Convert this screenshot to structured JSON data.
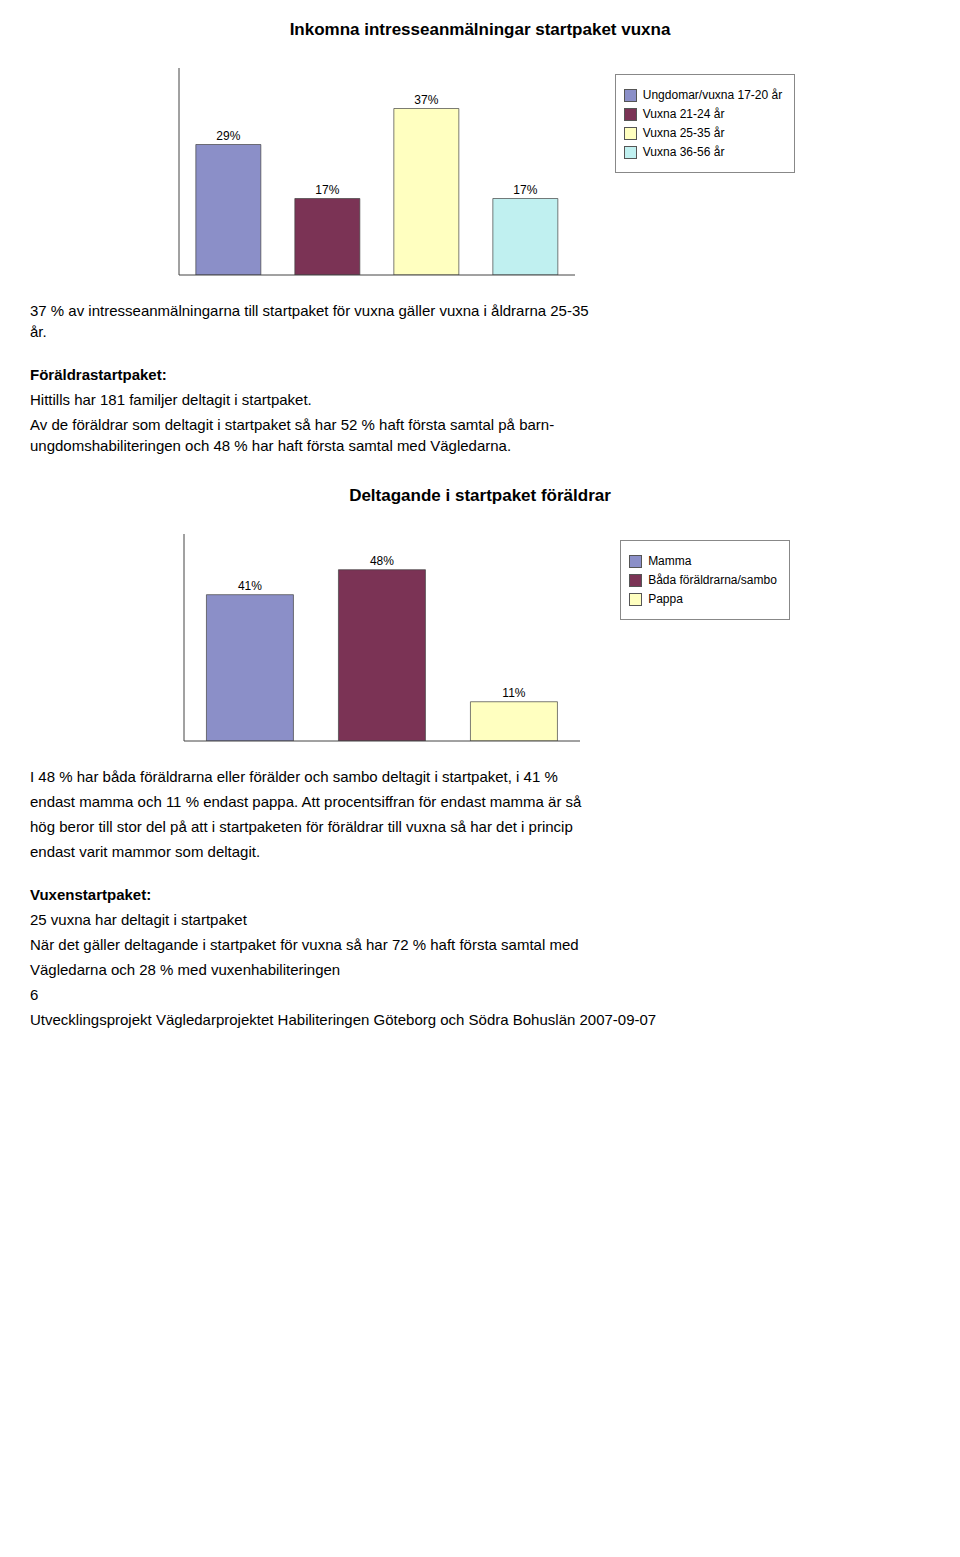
{
  "chart_data": [
    {
      "type": "bar",
      "title": "Inkomna intresseanmälningar startpaket vuxna",
      "categories": [
        "Ungdomar/vuxna 17-20 år",
        "Vuxna 21-24 år",
        "Vuxna 25-35 år",
        "Vuxna 36-56 år"
      ],
      "values": [
        29,
        17,
        37,
        17
      ],
      "value_labels": [
        "29%",
        "17%",
        "37%",
        "17%"
      ],
      "colors": [
        "#8b8fc8",
        "#7b3355",
        "#ffffc0",
        "#c0f0f0"
      ],
      "ylim": [
        0,
        46
      ],
      "data_labels": true,
      "tick_labels": false,
      "legend": "right",
      "annotations": [
        "37 % av intresseanmälningarna till startpaket för vuxna gäller vuxna i åldrarna 25-35\når.",
        "Föräldrastartpaket:",
        "Hittills har 181 familjer deltagit i startpaket.",
        "Av de föräldrar som deltagit i startpaket så har 52 % haft första samtal på barn-\nungdomshabiliteringen och 48 % har haft första samtal med Vägledarna."
      ]
    },
    {
      "type": "bar",
      "title": "Deltagande i startpaket föräldrar",
      "categories": [
        "Mamma",
        "Båda föräldrarna/sambo",
        "Pappa"
      ],
      "values": [
        41,
        48,
        11
      ],
      "value_labels": [
        "41%",
        "48%",
        "11%"
      ],
      "colors": [
        "#8b8fc8",
        "#7b3355",
        "#ffffc0"
      ],
      "ylim": [
        0,
        58
      ],
      "data_labels": true,
      "tick_labels": false,
      "legend": "right",
      "annotations": [
        "I 48 % har båda föräldrarna eller förälder och sambo deltagit i startpaket, i 41 %",
        "endast mamma och 11 % endast pappa. Att procentsiffran för endast mamma är så",
        "hög beror till stor del på att i startpaketen för föräldrar till vuxna så har det i princip",
        "endast varit mammor som deltagit.",
        "Vuxenstartpaket:",
        "25 vuxna har deltagit i startpaket",
        "När det gäller deltagande i startpaket för vuxna så har 72 % haft första samtal med",
        "Vägledarna och 28 % med vuxenhabiliteringen",
        "6",
        "Utvecklingsprojekt Vägledarprojektet Habiliteringen Göteborg och Södra Bohuslän 2007-09-07"
      ]
    }
  ]
}
